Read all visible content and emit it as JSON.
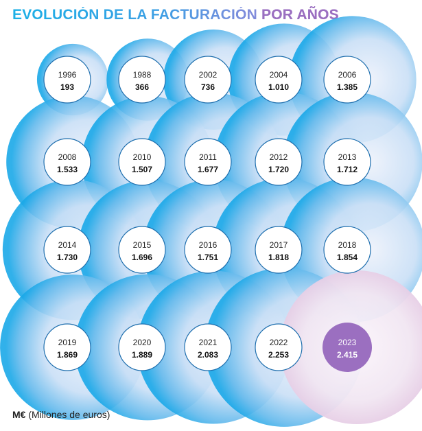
{
  "chart_data": {
    "type": "bubble",
    "title_main": "EVOLUCIÓN DE LA FACTURACIÓN ",
    "title_accent": "POR AÑOS",
    "unit_label": "M€",
    "unit_desc": "(Millones de euros)",
    "values_display": [
      "193",
      "366",
      "736",
      "1.010",
      "1.385",
      "1.533",
      "1.507",
      "1.677",
      "1.720",
      "1.712",
      "1.730",
      "1.696",
      "1.751",
      "1.818",
      "1.854",
      "1.869",
      "1.889",
      "2.083",
      "2.253",
      "2.415"
    ],
    "categories": [
      "1996",
      "1988",
      "2002",
      "2004",
      "2006",
      "2008",
      "2010",
      "2011",
      "2012",
      "2013",
      "2014",
      "2015",
      "2016",
      "2017",
      "2018",
      "2019",
      "2020",
      "2021",
      "2022",
      "2023"
    ],
    "values": [
      193,
      366,
      736,
      1010,
      1385,
      1533,
      1507,
      1677,
      1720,
      1712,
      1730,
      1696,
      1751,
      1818,
      1854,
      1869,
      1889,
      2083,
      2253,
      2415
    ],
    "highlight": "2023",
    "colors": {
      "blue": "#1aa8e8",
      "light": "#eef2fb",
      "accent": "#9b6fc0",
      "accent_light": "#f1e6f2",
      "text": "#222222"
    }
  }
}
